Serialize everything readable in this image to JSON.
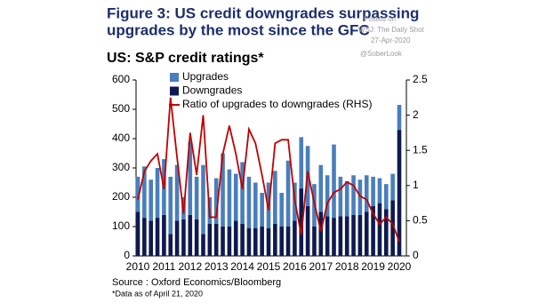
{
  "chart_data": {
    "type": "bar",
    "title": "Figure 3: US credit downgrades surpassing upgrades by the most since the GFC",
    "watermark": [
      "Posted on",
      "WSJ: The Daily Shot",
      "27-Apr-2020",
      "@SoberLook"
    ],
    "subtitle": "US: S&P credit ratings*",
    "source": "Source : Oxford Economics/Bloomberg",
    "note": "*Data as of April 21, 2020",
    "categories": [
      "2010",
      null,
      null,
      null,
      "2011",
      null,
      null,
      null,
      "2012",
      null,
      null,
      null,
      "2013",
      null,
      null,
      null,
      "2014",
      null,
      null,
      null,
      "2015",
      null,
      null,
      null,
      "2016",
      null,
      null,
      null,
      "2017",
      null,
      null,
      null,
      "2018",
      null,
      null,
      null,
      "2019",
      null,
      null,
      null,
      "2020"
    ],
    "series": [
      {
        "name": "Downgrades",
        "color": "#0e1a4f",
        "values": [
          150,
          130,
          120,
          130,
          140,
          75,
          120,
          125,
          140,
          125,
          75,
          110,
          110,
          100,
          100,
          120,
          110,
          95,
          95,
          100,
          95,
          110,
          100,
          100,
          120,
          230,
          170,
          100,
          150,
          135,
          130,
          135,
          135,
          140,
          140,
          150,
          170,
          180,
          160,
          190,
          430
        ]
      },
      {
        "name": "Upgrades",
        "color": "#4a7ebb",
        "values": [
          120,
          175,
          140,
          170,
          190,
          195,
          190,
          75,
          250,
          145,
          235,
          90,
          155,
          250,
          195,
          160,
          210,
          175,
          155,
          115,
          155,
          180,
          115,
          225,
          130,
          175,
          205,
          145,
          160,
          140,
          250,
          135,
          120,
          135,
          120,
          125,
          100,
          85,
          85,
          90,
          85
        ]
      },
      {
        "name": "Ratio of upgrades to downgrades (RHS)",
        "color": "#c00000",
        "axis": "y2",
        "type": "line",
        "values": [
          0.8,
          1.2,
          1.35,
          1.45,
          0.95,
          2.25,
          1.4,
          0.6,
          1.75,
          1.15,
          2.0,
          0.55,
          0.55,
          1.45,
          1.85,
          1.45,
          0.95,
          1.8,
          1.6,
          1.15,
          0.65,
          1.6,
          1.65,
          1.65,
          0.8,
          0.3,
          1.2,
          0.75,
          0.35,
          0.75,
          0.9,
          0.95,
          1.05,
          1.0,
          0.85,
          0.8,
          0.6,
          0.45,
          0.55,
          0.45,
          0.2
        ]
      }
    ],
    "ylim": [
      0,
      600
    ],
    "yticks": [
      0,
      100,
      200,
      300,
      400,
      500,
      600
    ],
    "y2lim": [
      0,
      2.5
    ],
    "y2ticks": [
      0,
      0.5,
      1,
      1.5,
      2,
      2.5
    ],
    "grid": false
  }
}
